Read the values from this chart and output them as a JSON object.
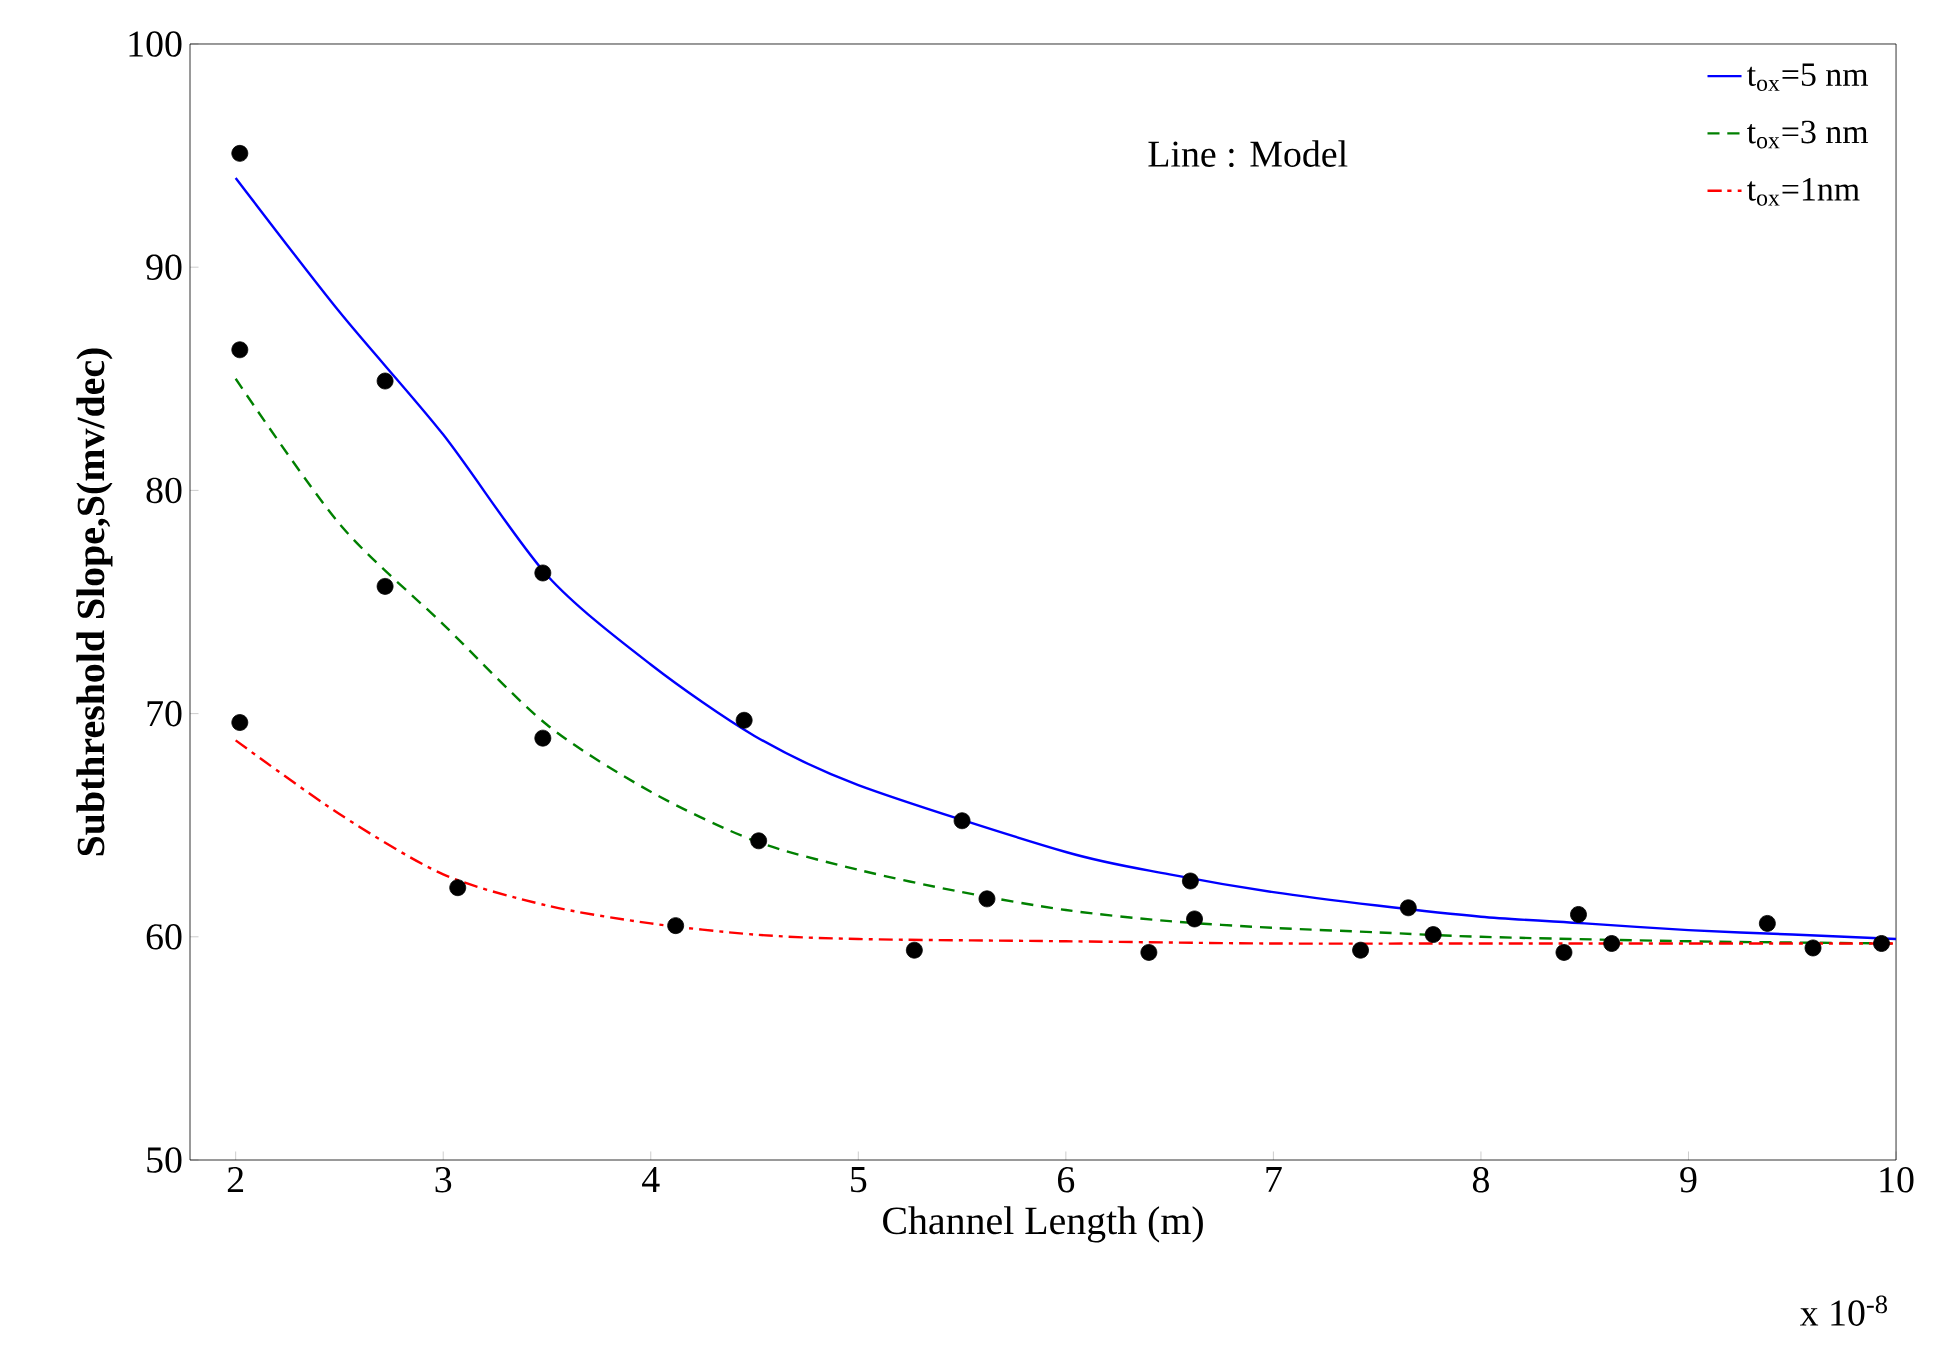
{
  "chart_data": {
    "type": "line",
    "xlabel": "Channel Length (m)",
    "ylabel": "Subthreshold Slope,S(mv/dec)",
    "xlim": [
      1.78,
      10
    ],
    "xticks": [
      2,
      3,
      4,
      5,
      6,
      7,
      8,
      9,
      10
    ],
    "ylim": [
      50,
      100
    ],
    "yticks": [
      50,
      60,
      70,
      80,
      90,
      100
    ],
    "grid": false,
    "legend": "top right",
    "annotations": [
      "Line : Model",
      "x 10$^{-8}$"
    ],
    "series": [
      {
        "name": "t$_{ox}$=5 nm",
        "color": "#0000ff",
        "line_style": "solid",
        "marker": "none",
        "x": [
          2,
          2.5,
          3,
          3.5,
          4,
          4.5,
          5,
          6,
          6.5,
          7,
          7.5,
          8,
          8.5,
          9,
          9.5,
          10
        ],
        "values": [
          94,
          88,
          82.5,
          76.2,
          72.2,
          69,
          66.8,
          63.8,
          62.8,
          62,
          61.4,
          60.9,
          60.6,
          60.3,
          60.1,
          59.9
        ]
      },
      {
        "name": "t$_{ox}$=3 nm",
        "color": "#008000",
        "line_style": "dashed",
        "marker": "none",
        "x": [
          2,
          2.5,
          3,
          3.5,
          4,
          4.5,
          5,
          5.5,
          6,
          6.5,
          7,
          7.5,
          8,
          9,
          10
        ],
        "values": [
          85,
          78.5,
          74,
          69.5,
          66.5,
          64.3,
          63,
          62,
          61.2,
          60.7,
          60.4,
          60.2,
          60,
          59.8,
          59.7
        ]
      },
      {
        "name": "t$_{ox}$=1nm",
        "color": "#ff0000",
        "line_style": "dashdot",
        "marker": "none",
        "x": [
          2,
          2.5,
          3,
          3.5,
          4,
          4.5,
          5,
          6,
          7,
          8,
          10
        ],
        "values": [
          68.8,
          65.5,
          62.8,
          61.4,
          60.6,
          60.1,
          59.9,
          59.8,
          59.7,
          59.7,
          59.7
        ]
      },
      {
        "type": "scatter",
        "color": "#000000",
        "marker": "circle",
        "x": [
          2.02,
          2.02,
          2.02,
          2.72,
          2.72,
          3.07,
          3.48,
          3.48,
          4.12,
          4.45,
          4.52,
          5.27,
          5.5,
          5.62,
          6.4,
          6.6,
          6.62,
          7.42,
          7.65,
          7.77,
          8.4,
          8.47,
          8.63,
          9.38,
          9.6,
          9.93
        ],
        "values": [
          95.1,
          86.3,
          69.6,
          84.9,
          75.7,
          62.2,
          76.3,
          68.9,
          60.5,
          69.7,
          64.3,
          59.4,
          65.2,
          61.7,
          59.3,
          62.5,
          60.8,
          59.4,
          61.3,
          60.1,
          59.3,
          61.0,
          59.7,
          60.6,
          59.5,
          59.7
        ]
      }
    ]
  }
}
